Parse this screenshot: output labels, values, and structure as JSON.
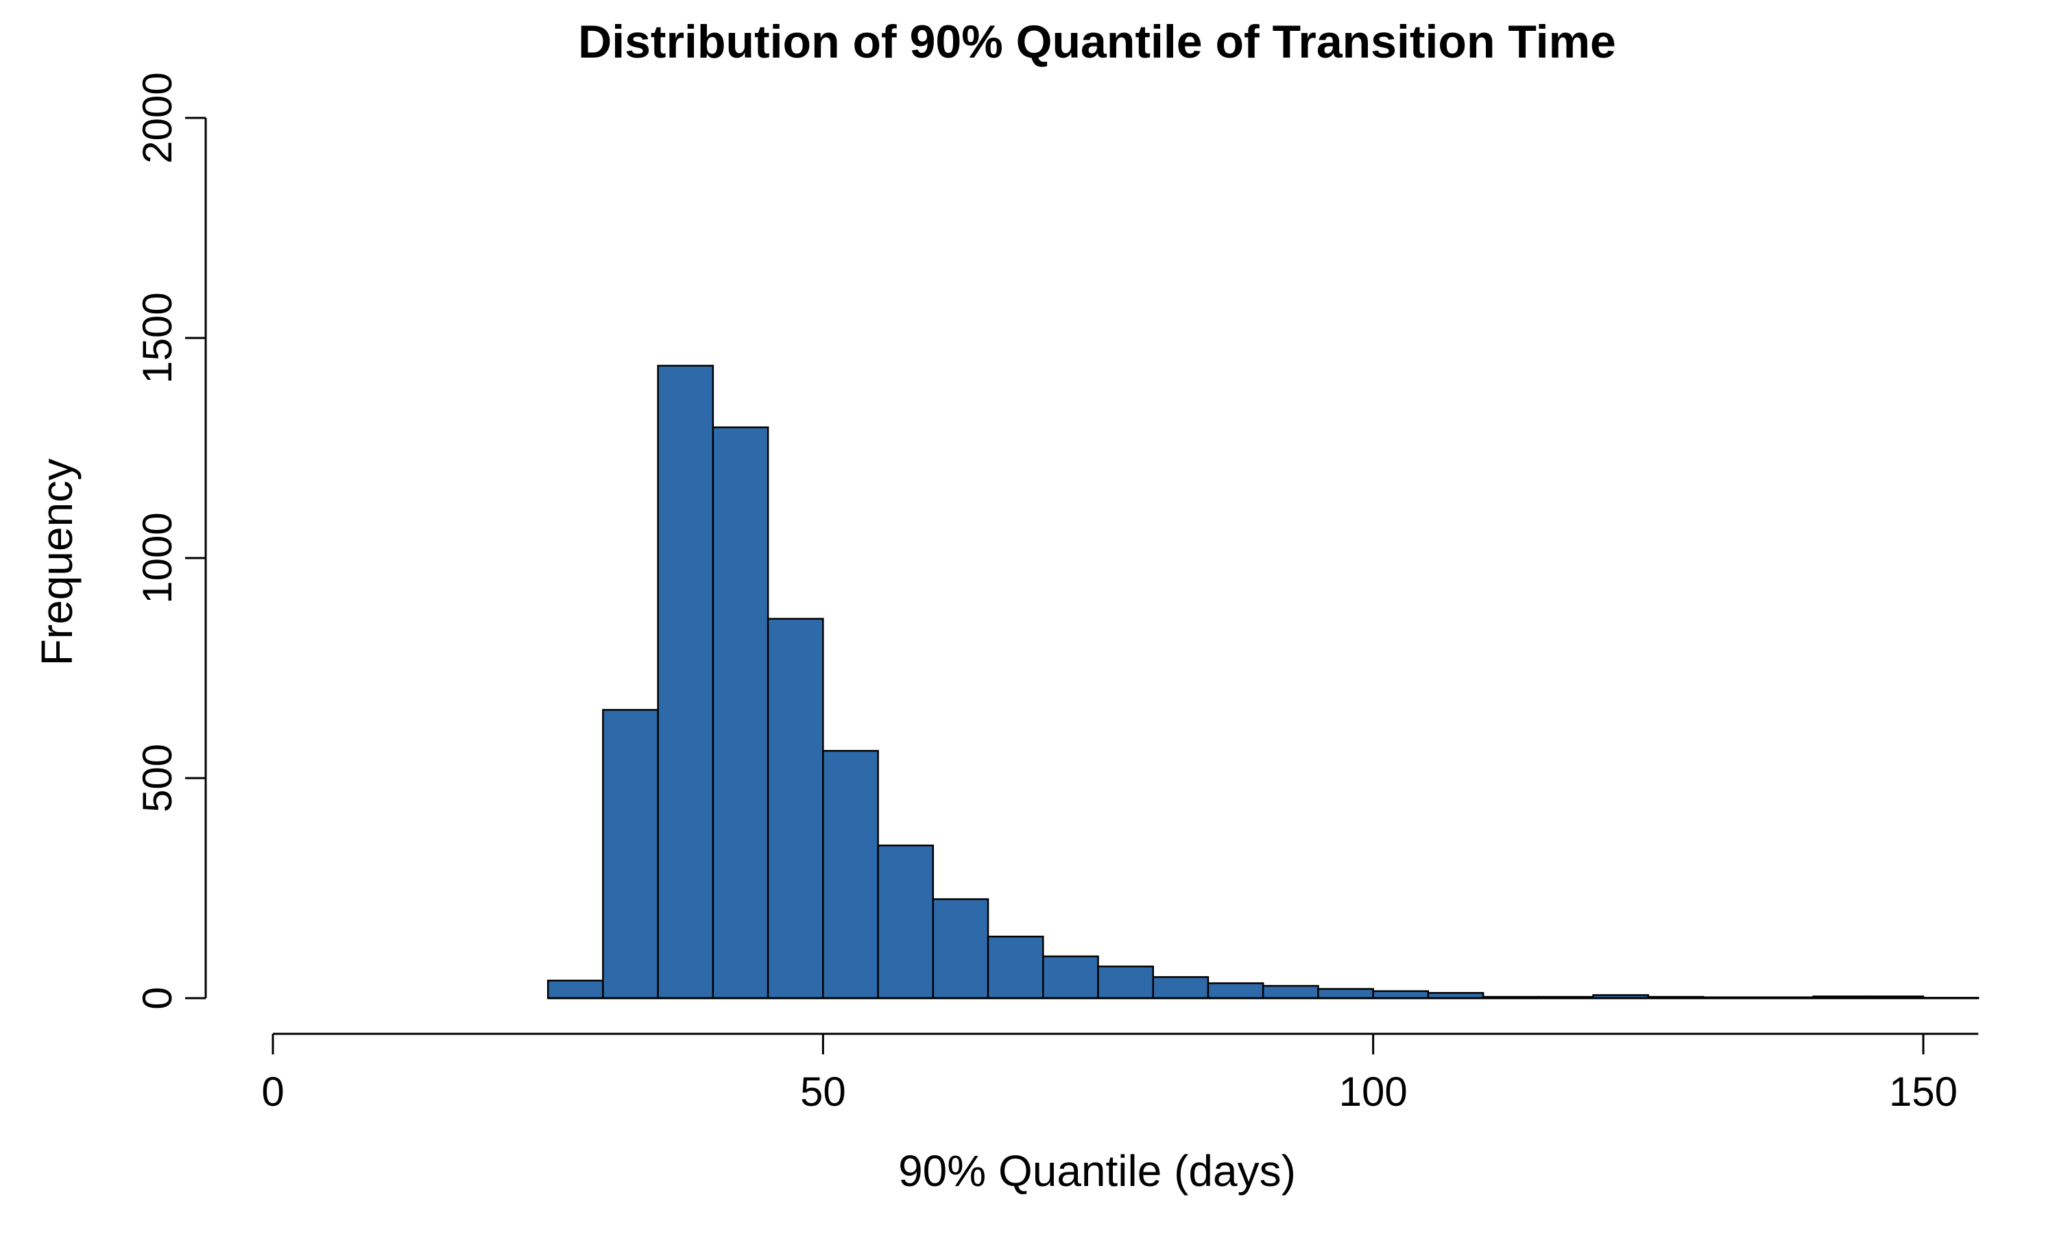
{
  "chart_data": {
    "type": "bar",
    "title": "Distribution of 90% Quantile of Transition Time",
    "xlabel": "90% Quantile (days)",
    "ylabel": "Frequency",
    "xlim": [
      0,
      155
    ],
    "ylim": [
      0,
      2000
    ],
    "x_ticks": [
      0,
      50,
      100,
      150
    ],
    "y_ticks": [
      0,
      500,
      1000,
      1500,
      2000
    ],
    "bin_width": 5,
    "bins": [
      {
        "x0": 25,
        "x1": 30,
        "count": 40
      },
      {
        "x0": 30,
        "x1": 35,
        "count": 655
      },
      {
        "x0": 35,
        "x1": 40,
        "count": 1437
      },
      {
        "x0": 40,
        "x1": 45,
        "count": 1297
      },
      {
        "x0": 45,
        "x1": 50,
        "count": 862
      },
      {
        "x0": 50,
        "x1": 55,
        "count": 562
      },
      {
        "x0": 55,
        "x1": 60,
        "count": 347
      },
      {
        "x0": 60,
        "x1": 65,
        "count": 225
      },
      {
        "x0": 65,
        "x1": 70,
        "count": 140
      },
      {
        "x0": 70,
        "x1": 75,
        "count": 95
      },
      {
        "x0": 75,
        "x1": 80,
        "count": 72
      },
      {
        "x0": 80,
        "x1": 85,
        "count": 48
      },
      {
        "x0": 85,
        "x1": 90,
        "count": 34
      },
      {
        "x0": 90,
        "x1": 95,
        "count": 28
      },
      {
        "x0": 95,
        "x1": 100,
        "count": 21
      },
      {
        "x0": 100,
        "x1": 105,
        "count": 16
      },
      {
        "x0": 105,
        "x1": 110,
        "count": 12
      },
      {
        "x0": 110,
        "x1": 115,
        "count": 3
      },
      {
        "x0": 115,
        "x1": 120,
        "count": 3
      },
      {
        "x0": 120,
        "x1": 125,
        "count": 7
      },
      {
        "x0": 125,
        "x1": 130,
        "count": 3
      },
      {
        "x0": 130,
        "x1": 135,
        "count": 2
      },
      {
        "x0": 135,
        "x1": 140,
        "count": 2
      },
      {
        "x0": 140,
        "x1": 145,
        "count": 4
      },
      {
        "x0": 145,
        "x1": 150,
        "count": 4
      },
      {
        "x0": 150,
        "x1": 155,
        "count": 1
      }
    ],
    "bar_color": "#2e6aa9",
    "grid": false,
    "legend": "none"
  }
}
